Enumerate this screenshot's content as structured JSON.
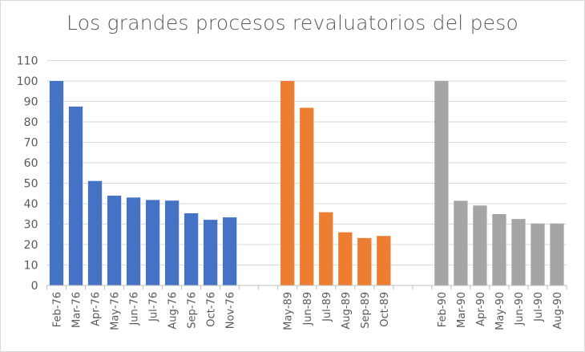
{
  "chart_data": {
    "type": "bar",
    "title": "Los grandes procesos revaluatorios del peso",
    "xlabel": "",
    "ylabel": "",
    "ylim": [
      0,
      110
    ],
    "yticks": [
      0,
      10,
      20,
      30,
      40,
      50,
      60,
      70,
      80,
      90,
      100,
      110
    ],
    "grid": true,
    "legend": "none",
    "categories": [
      "Feb-76",
      "Mar-76",
      "Apr-76",
      "May-76",
      "Jun-76",
      "Jul-76",
      "Aug-76",
      "Sep-76",
      "Oct-76",
      "Nov-76",
      "",
      "",
      "May-89",
      "Jun-89",
      "Jul-89",
      "Aug-89",
      "Sep-89",
      "Oct-89",
      "",
      "",
      "Feb-90",
      "Mar-90",
      "Apr-90",
      "May-90",
      "Jun-90",
      "Jul-90",
      "Aug-90"
    ],
    "series": [
      {
        "color": "#4472c4",
        "values": [
          100,
          87.5,
          51.1,
          43.9,
          43.0,
          41.8,
          41.5,
          35.3,
          32.1,
          33.3,
          null,
          null,
          null,
          null,
          null,
          null,
          null,
          null,
          null,
          null,
          null,
          null,
          null,
          null,
          null,
          null,
          null
        ]
      },
      {
        "color": "#ed7d31",
        "values": [
          null,
          null,
          null,
          null,
          null,
          null,
          null,
          null,
          null,
          null,
          null,
          null,
          100,
          86.9,
          35.8,
          26.0,
          23.2,
          24.2,
          null,
          null,
          null,
          null,
          null,
          null,
          null,
          null,
          null
        ]
      },
      {
        "color": "#a5a5a5",
        "values": [
          null,
          null,
          null,
          null,
          null,
          null,
          null,
          null,
          null,
          null,
          null,
          null,
          null,
          null,
          null,
          null,
          null,
          null,
          null,
          null,
          100,
          41.4,
          39.1,
          34.9,
          32.5,
          30.3,
          30.3
        ]
      }
    ]
  }
}
